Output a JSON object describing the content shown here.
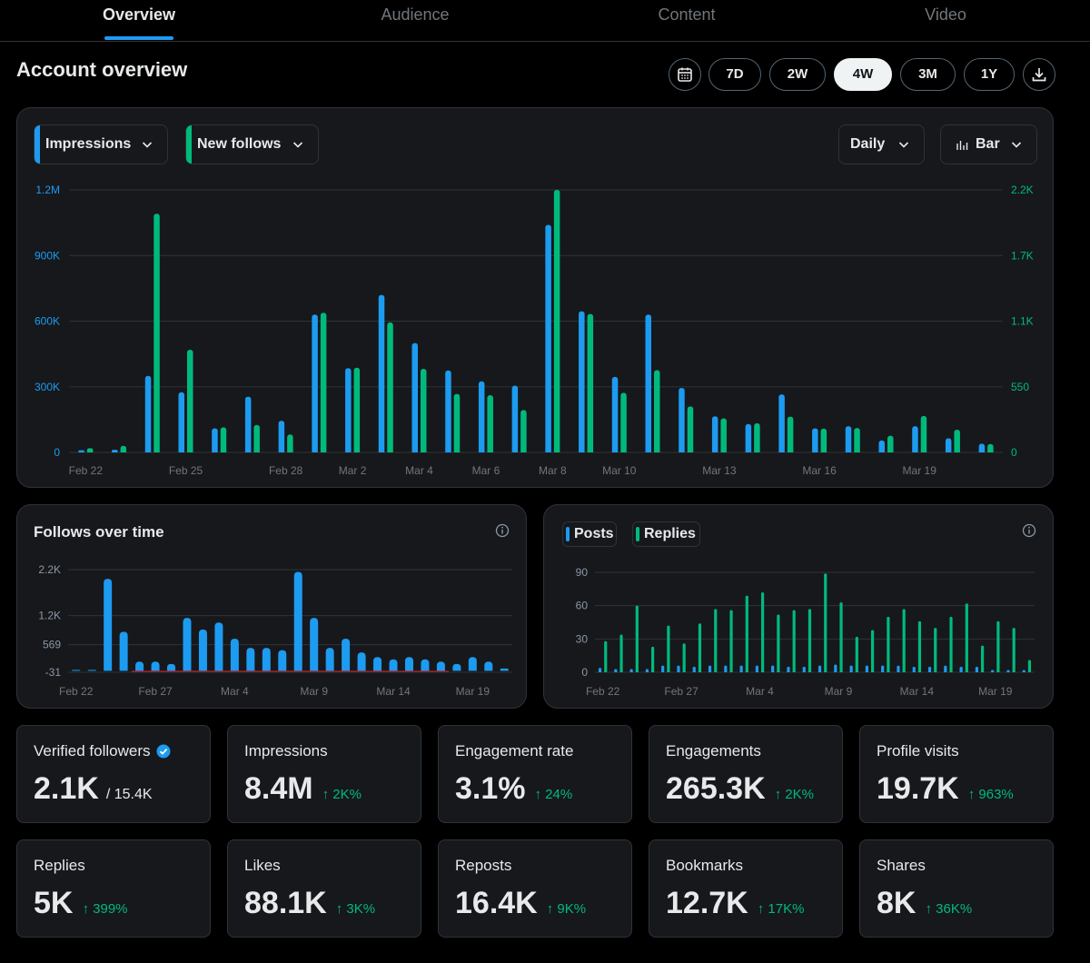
{
  "tabs": [
    {
      "label": "Overview",
      "active": true
    },
    {
      "label": "Audience",
      "active": false
    },
    {
      "label": "Content",
      "active": false
    },
    {
      "label": "Video",
      "active": false
    }
  ],
  "header": {
    "title": "Account overview",
    "ranges": [
      "7D",
      "2W",
      "4W",
      "3M",
      "1Y"
    ],
    "active_range": "4W",
    "calendar_icon": "calendar-icon",
    "download_icon": "download-icon"
  },
  "main_chart": {
    "metric_a": "Impressions",
    "metric_b": "New follows",
    "interval": "Daily",
    "chart_type_label": "Bar",
    "colors": {
      "blue": "#1d9bf0",
      "green": "#00ba7c"
    }
  },
  "follows_panel": {
    "title": "Follows over time"
  },
  "posts_panel": {
    "legend_posts": "Posts",
    "legend_replies": "Replies"
  },
  "chart_data": [
    {
      "type": "bar",
      "categories": [
        "Feb 22",
        "Feb 23",
        "Feb 24",
        "Feb 25",
        "Feb 26",
        "Feb 27",
        "Feb 28",
        "Mar 1",
        "Mar 2",
        "Mar 3",
        "Mar 4",
        "Mar 5",
        "Mar 6",
        "Mar 7",
        "Mar 8",
        "Mar 9",
        "Mar 10",
        "Mar 11",
        "Mar 12",
        "Mar 13",
        "Mar 14",
        "Mar 15",
        "Mar 16",
        "Mar 17",
        "Mar 18",
        "Mar 19",
        "Mar 20",
        "Mar 21"
      ],
      "x_tick_labels": [
        "Feb 22",
        "",
        "",
        "Feb 25",
        "",
        "",
        "Feb 28",
        "",
        "Mar 2",
        "",
        "Mar 4",
        "",
        "Mar 6",
        "",
        "Mar 8",
        "",
        "Mar 10",
        "",
        "",
        "Mar 13",
        "",
        "",
        "Mar 16",
        "",
        "",
        "Mar 19",
        "",
        ""
      ],
      "series": [
        {
          "name": "Impressions",
          "axis": "left",
          "values": [
            10000,
            12000,
            350000,
            275000,
            110000,
            255000,
            145000,
            630000,
            385000,
            720000,
            500000,
            375000,
            325000,
            305000,
            1040000,
            645000,
            345000,
            630000,
            295000,
            165000,
            130000,
            265000,
            110000,
            120000,
            55000,
            120000,
            65000,
            40000
          ]
        },
        {
          "name": "New follows",
          "axis": "right",
          "values": [
            35,
            55,
            2000,
            860,
            210,
            230,
            150,
            1170,
            710,
            1090,
            700,
            490,
            480,
            355,
            2200,
            1160,
            500,
            690,
            385,
            285,
            245,
            300,
            200,
            205,
            140,
            305,
            190,
            70
          ]
        }
      ],
      "y_left_ticks": [
        "0",
        "300K",
        "600K",
        "900K",
        "1.2M"
      ],
      "y_left_lim": [
        0,
        1200000
      ],
      "y_right_ticks": [
        "0",
        "550",
        "1.1K",
        "1.7K",
        "2.2K"
      ],
      "y_right_lim": [
        0,
        2200
      ],
      "grid": true
    },
    {
      "type": "bar",
      "categories": [
        "Feb 22",
        "Feb 23",
        "Feb 24",
        "Feb 25",
        "Feb 26",
        "Feb 27",
        "Feb 28",
        "Mar 1",
        "Mar 2",
        "Mar 3",
        "Mar 4",
        "Mar 5",
        "Mar 6",
        "Mar 7",
        "Mar 8",
        "Mar 9",
        "Mar 10",
        "Mar 11",
        "Mar 12",
        "Mar 13",
        "Mar 14",
        "Mar 15",
        "Mar 16",
        "Mar 17",
        "Mar 18",
        "Mar 19",
        "Mar 20",
        "Mar 21"
      ],
      "x_tick_labels": [
        "Feb 22",
        "",
        "",
        "",
        "",
        "Feb 27",
        "",
        "",
        "",
        "",
        "Mar 4",
        "",
        "",
        "",
        "",
        "Mar 9",
        "",
        "",
        "",
        "",
        "Mar 14",
        "",
        "",
        "",
        "",
        "Mar 19",
        "",
        ""
      ],
      "values": [
        20,
        20,
        2000,
        850,
        200,
        200,
        150,
        1150,
        900,
        1050,
        700,
        500,
        500,
        450,
        2150,
        1150,
        500,
        700,
        400,
        300,
        250,
        300,
        250,
        200,
        150,
        300,
        200,
        50
      ],
      "y_ticks": [
        "-31",
        "569",
        "1.2K",
        "2.2K"
      ],
      "ylim": [
        -31,
        2200
      ],
      "grid": true
    },
    {
      "type": "bar",
      "categories": [
        "Feb 22",
        "Feb 23",
        "Feb 24",
        "Feb 25",
        "Feb 26",
        "Feb 27",
        "Feb 28",
        "Mar 1",
        "Mar 2",
        "Mar 3",
        "Mar 4",
        "Mar 5",
        "Mar 6",
        "Mar 7",
        "Mar 8",
        "Mar 9",
        "Mar 10",
        "Mar 11",
        "Mar 12",
        "Mar 13",
        "Mar 14",
        "Mar 15",
        "Mar 16",
        "Mar 17",
        "Mar 18",
        "Mar 19",
        "Mar 20",
        "Mar 21"
      ],
      "x_tick_labels": [
        "Feb 22",
        "",
        "",
        "",
        "",
        "Feb 27",
        "",
        "",
        "",
        "",
        "Mar 4",
        "",
        "",
        "",
        "",
        "Mar 9",
        "",
        "",
        "",
        "",
        "Mar 14",
        "",
        "",
        "",
        "",
        "Mar 19",
        "",
        ""
      ],
      "series": [
        {
          "name": "Posts",
          "values": [
            4,
            3,
            3,
            3,
            6,
            6,
            5,
            6,
            6,
            6,
            6,
            6,
            5,
            5,
            6,
            7,
            6,
            6,
            6,
            6,
            5,
            5,
            6,
            5,
            5,
            2,
            2,
            2
          ]
        },
        {
          "name": "Replies",
          "values": [
            28,
            34,
            60,
            23,
            42,
            26,
            44,
            57,
            56,
            69,
            72,
            52,
            56,
            57,
            89,
            63,
            32,
            38,
            50,
            57,
            46,
            40,
            50,
            62,
            24,
            46,
            40,
            11
          ]
        }
      ],
      "y_ticks": [
        "0",
        "30",
        "60",
        "90"
      ],
      "ylim": [
        0,
        90
      ],
      "grid": true
    }
  ],
  "cards": [
    {
      "label": "Verified followers",
      "value": "2.1K",
      "sub": "/ 15.4K",
      "change": "",
      "verified": true
    },
    {
      "label": "Impressions",
      "value": "8.4M",
      "sub": "",
      "change": "↑ 2K%"
    },
    {
      "label": "Engagement rate",
      "value": "3.1%",
      "sub": "",
      "change": "↑ 24%"
    },
    {
      "label": "Engagements",
      "value": "265.3K",
      "sub": "",
      "change": "↑ 2K%"
    },
    {
      "label": "Profile visits",
      "value": "19.7K",
      "sub": "",
      "change": "↑ 963%"
    },
    {
      "label": "Replies",
      "value": "5K",
      "sub": "",
      "change": "↑ 399%"
    },
    {
      "label": "Likes",
      "value": "88.1K",
      "sub": "",
      "change": "↑ 3K%"
    },
    {
      "label": "Reposts",
      "value": "16.4K",
      "sub": "",
      "change": "↑ 9K%"
    },
    {
      "label": "Bookmarks",
      "value": "12.7K",
      "sub": "",
      "change": "↑ 17K%"
    },
    {
      "label": "Shares",
      "value": "8K",
      "sub": "",
      "change": "↑ 36K%"
    }
  ]
}
